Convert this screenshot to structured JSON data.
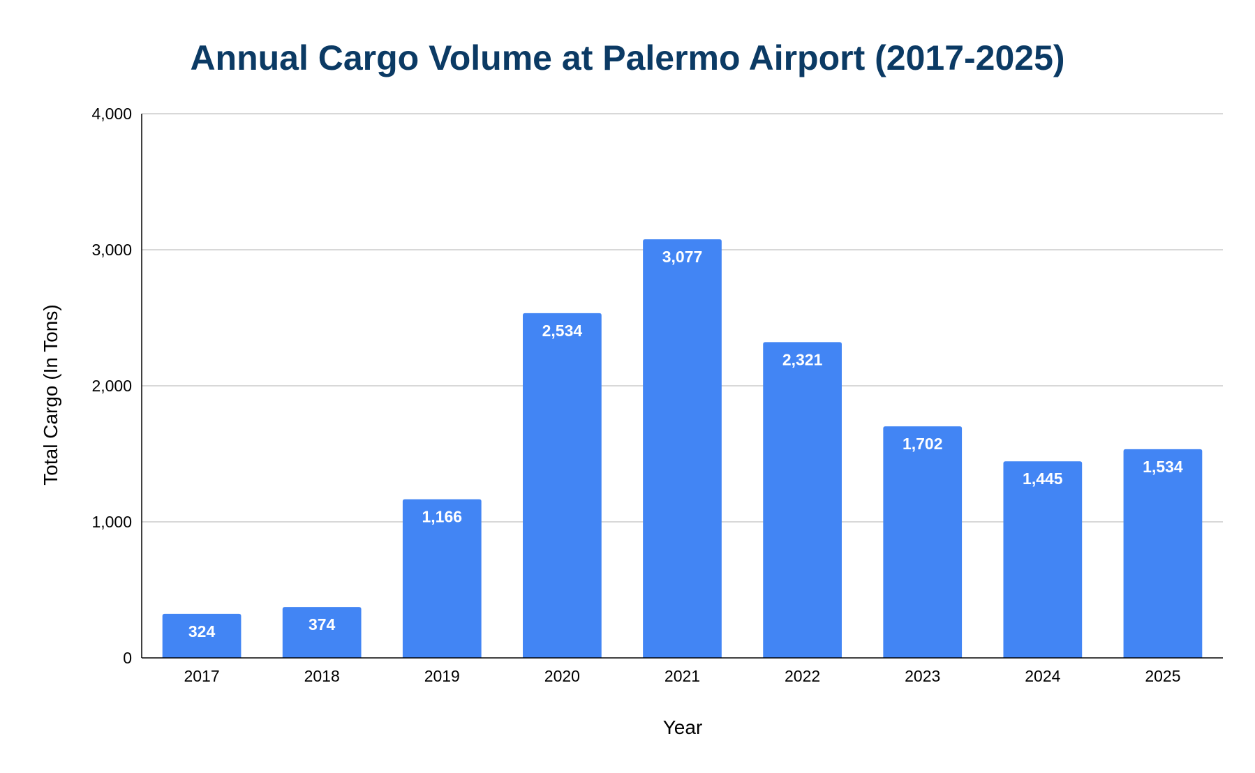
{
  "chart_data": {
    "type": "bar",
    "title": "Annual Cargo Volume at Palermo Airport (2017-2025)",
    "xlabel": "Year",
    "ylabel": "Total Cargo (In Tons)",
    "categories": [
      "2017",
      "2018",
      "2019",
      "2020",
      "2021",
      "2022",
      "2023",
      "2024",
      "2025"
    ],
    "values": [
      324,
      374,
      1166,
      2534,
      3077,
      2321,
      1702,
      1445,
      1534
    ],
    "data_labels": [
      "324",
      "374",
      "1,166",
      "2,534",
      "3,077",
      "2,321",
      "1,702",
      "1,445",
      "1,534"
    ],
    "ylim": [
      0,
      4000
    ],
    "yticks": [
      0,
      1000,
      2000,
      3000,
      4000
    ],
    "ytick_labels": [
      "0",
      "1,000",
      "2,000",
      "3,000",
      "4,000"
    ],
    "grid": true,
    "legend": "none",
    "colors": {
      "bar": "#4285f4",
      "title": "#0b3a64",
      "grid": "#cccccc",
      "axis": "#000000",
      "data_label": "#ffffff"
    }
  }
}
